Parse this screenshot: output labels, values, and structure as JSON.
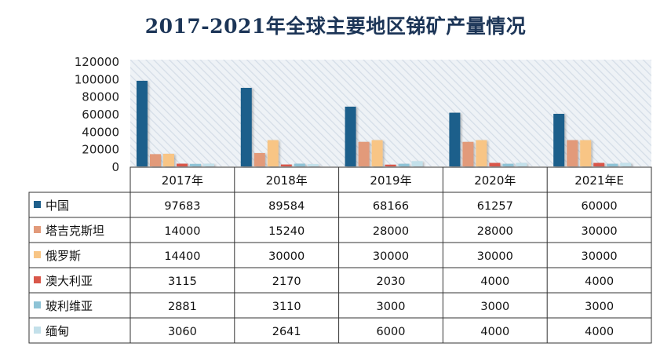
{
  "chart_data": {
    "type": "bar",
    "title": "2017-2021年全球主要地区锑矿产量情况",
    "categories": [
      "2017年",
      "2018年",
      "2019年",
      "2020年",
      "2021年E"
    ],
    "y_ticks": [
      "0",
      "20000",
      "40000",
      "60000",
      "80000",
      "100000",
      "120000"
    ],
    "ylim": [
      0,
      120000
    ],
    "grid": false,
    "legend": "data-table-left",
    "series": [
      {
        "name": "中国",
        "color": "#1f5f8b",
        "values": [
          97683,
          89584,
          68166,
          61257,
          60000
        ]
      },
      {
        "name": "塔吉克斯坦",
        "color": "#e29a7a",
        "values": [
          14000,
          15240,
          28000,
          28000,
          30000
        ]
      },
      {
        "name": "俄罗斯",
        "color": "#f8c585",
        "values": [
          14400,
          30000,
          30000,
          30000,
          30000
        ]
      },
      {
        "name": "澳大利亚",
        "color": "#d9574a",
        "values": [
          3115,
          2170,
          2030,
          4000,
          4000
        ]
      },
      {
        "name": "玻利维亚",
        "color": "#8ec3d6",
        "values": [
          2881,
          3110,
          3000,
          3000,
          3000
        ]
      },
      {
        "name": "缅甸",
        "color": "#c3e0ea",
        "values": [
          3060,
          2641,
          6000,
          4000,
          4000
        ]
      }
    ]
  }
}
